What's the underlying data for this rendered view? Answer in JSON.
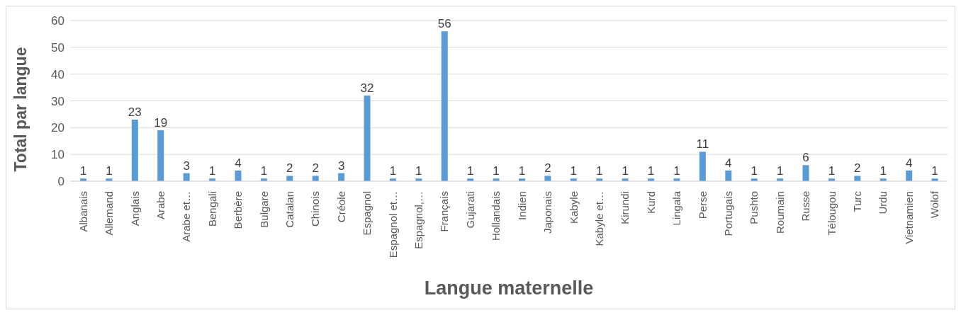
{
  "chart_data": {
    "type": "bar",
    "xlabel": "Langue maternelle",
    "ylabel": "Total par langue",
    "categories": [
      "Albanais",
      "Allemand",
      "Anglais",
      "Arabe",
      "Arabe et…",
      "Bengali",
      "Berbère",
      "Bulgare",
      "Catalan",
      "Chinois",
      "Créole",
      "Espagnol",
      "Espagnol et…",
      "Espagnol,…",
      "Français",
      "Gujarati",
      "Hollandais",
      "Indien",
      "Japonais",
      "Kabyle",
      "Kabyle et…",
      "Kirundi",
      "Kurd",
      "Lingala",
      "Perse",
      "Portugais",
      "Pushto",
      "Roumain",
      "Russe",
      "Télougou",
      "Turc",
      "Urdu",
      "Vietnamien",
      "Wolof"
    ],
    "values": [
      1,
      1,
      23,
      19,
      3,
      1,
      4,
      1,
      2,
      2,
      3,
      32,
      1,
      1,
      56,
      1,
      1,
      1,
      2,
      1,
      1,
      1,
      1,
      1,
      11,
      4,
      1,
      1,
      6,
      1,
      2,
      1,
      4,
      1
    ],
    "color": "#5b9bd5",
    "ylim": [
      0,
      60
    ],
    "yticks": [
      0,
      10,
      20,
      30,
      40,
      50,
      60
    ],
    "grid": "y",
    "data_labels": true
  }
}
